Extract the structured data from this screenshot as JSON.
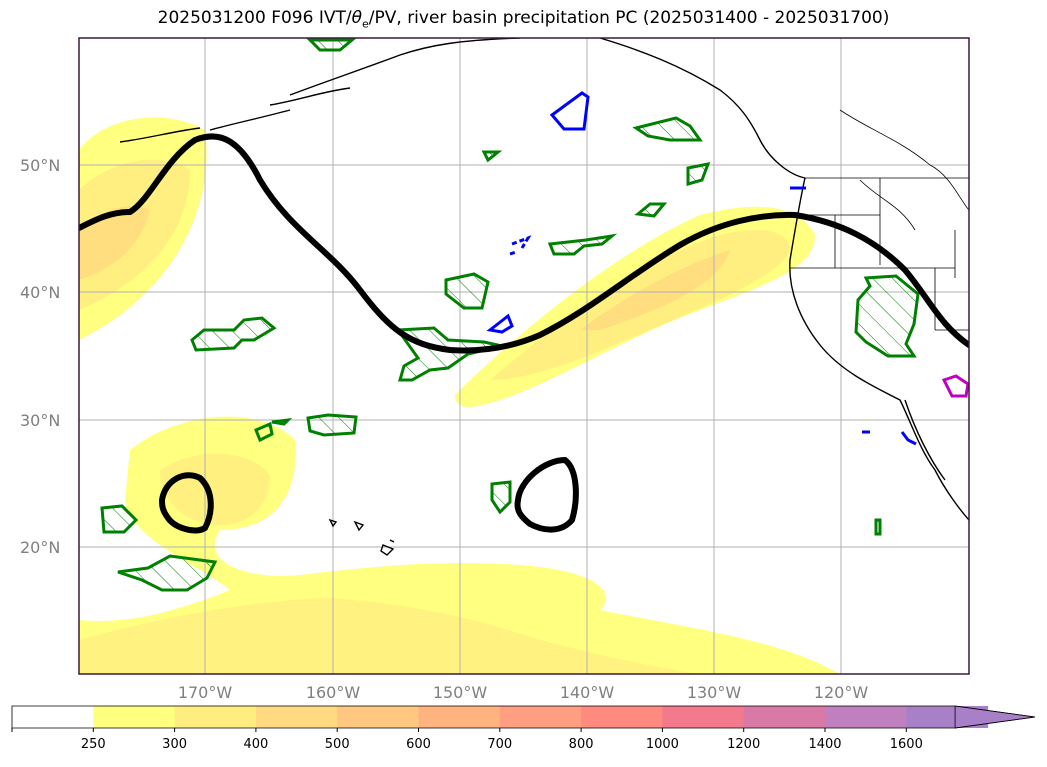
{
  "title": {
    "prefix": "2025031200 F096 IVT/",
    "theta": "θ",
    "theta_sub": "e",
    "suffix": "/PV, river basin precipitation PC (2025031400 - 2025031700)"
  },
  "map": {
    "lat_labels": [
      "50°N",
      "40°N",
      "30°N",
      "20°N"
    ],
    "lon_labels": [
      "170°W",
      "160°W",
      "150°W",
      "140°W",
      "130°W",
      "120°W"
    ],
    "gridlines": true
  },
  "colorbar": {
    "ticks": [
      "250",
      "300",
      "400",
      "500",
      "600",
      "700",
      "800",
      "1000",
      "1200",
      "1400",
      "1600"
    ],
    "colors": [
      "#ffffff",
      "#ffff80",
      "#ffed80",
      "#ffda80",
      "#ffc780",
      "#ffb480",
      "#ff9e80",
      "#ff8a80",
      "#f27a8c",
      "#d97aa6",
      "#c080c0",
      "#a780c8"
    ],
    "extend": "max"
  },
  "legend_colors": {
    "ivt_fill": "#ffff80",
    "pv_contour": "#000000",
    "precip_hatch": "#008000",
    "blue_contour": "#0000ff",
    "magenta_contour": "#c000c0"
  }
}
